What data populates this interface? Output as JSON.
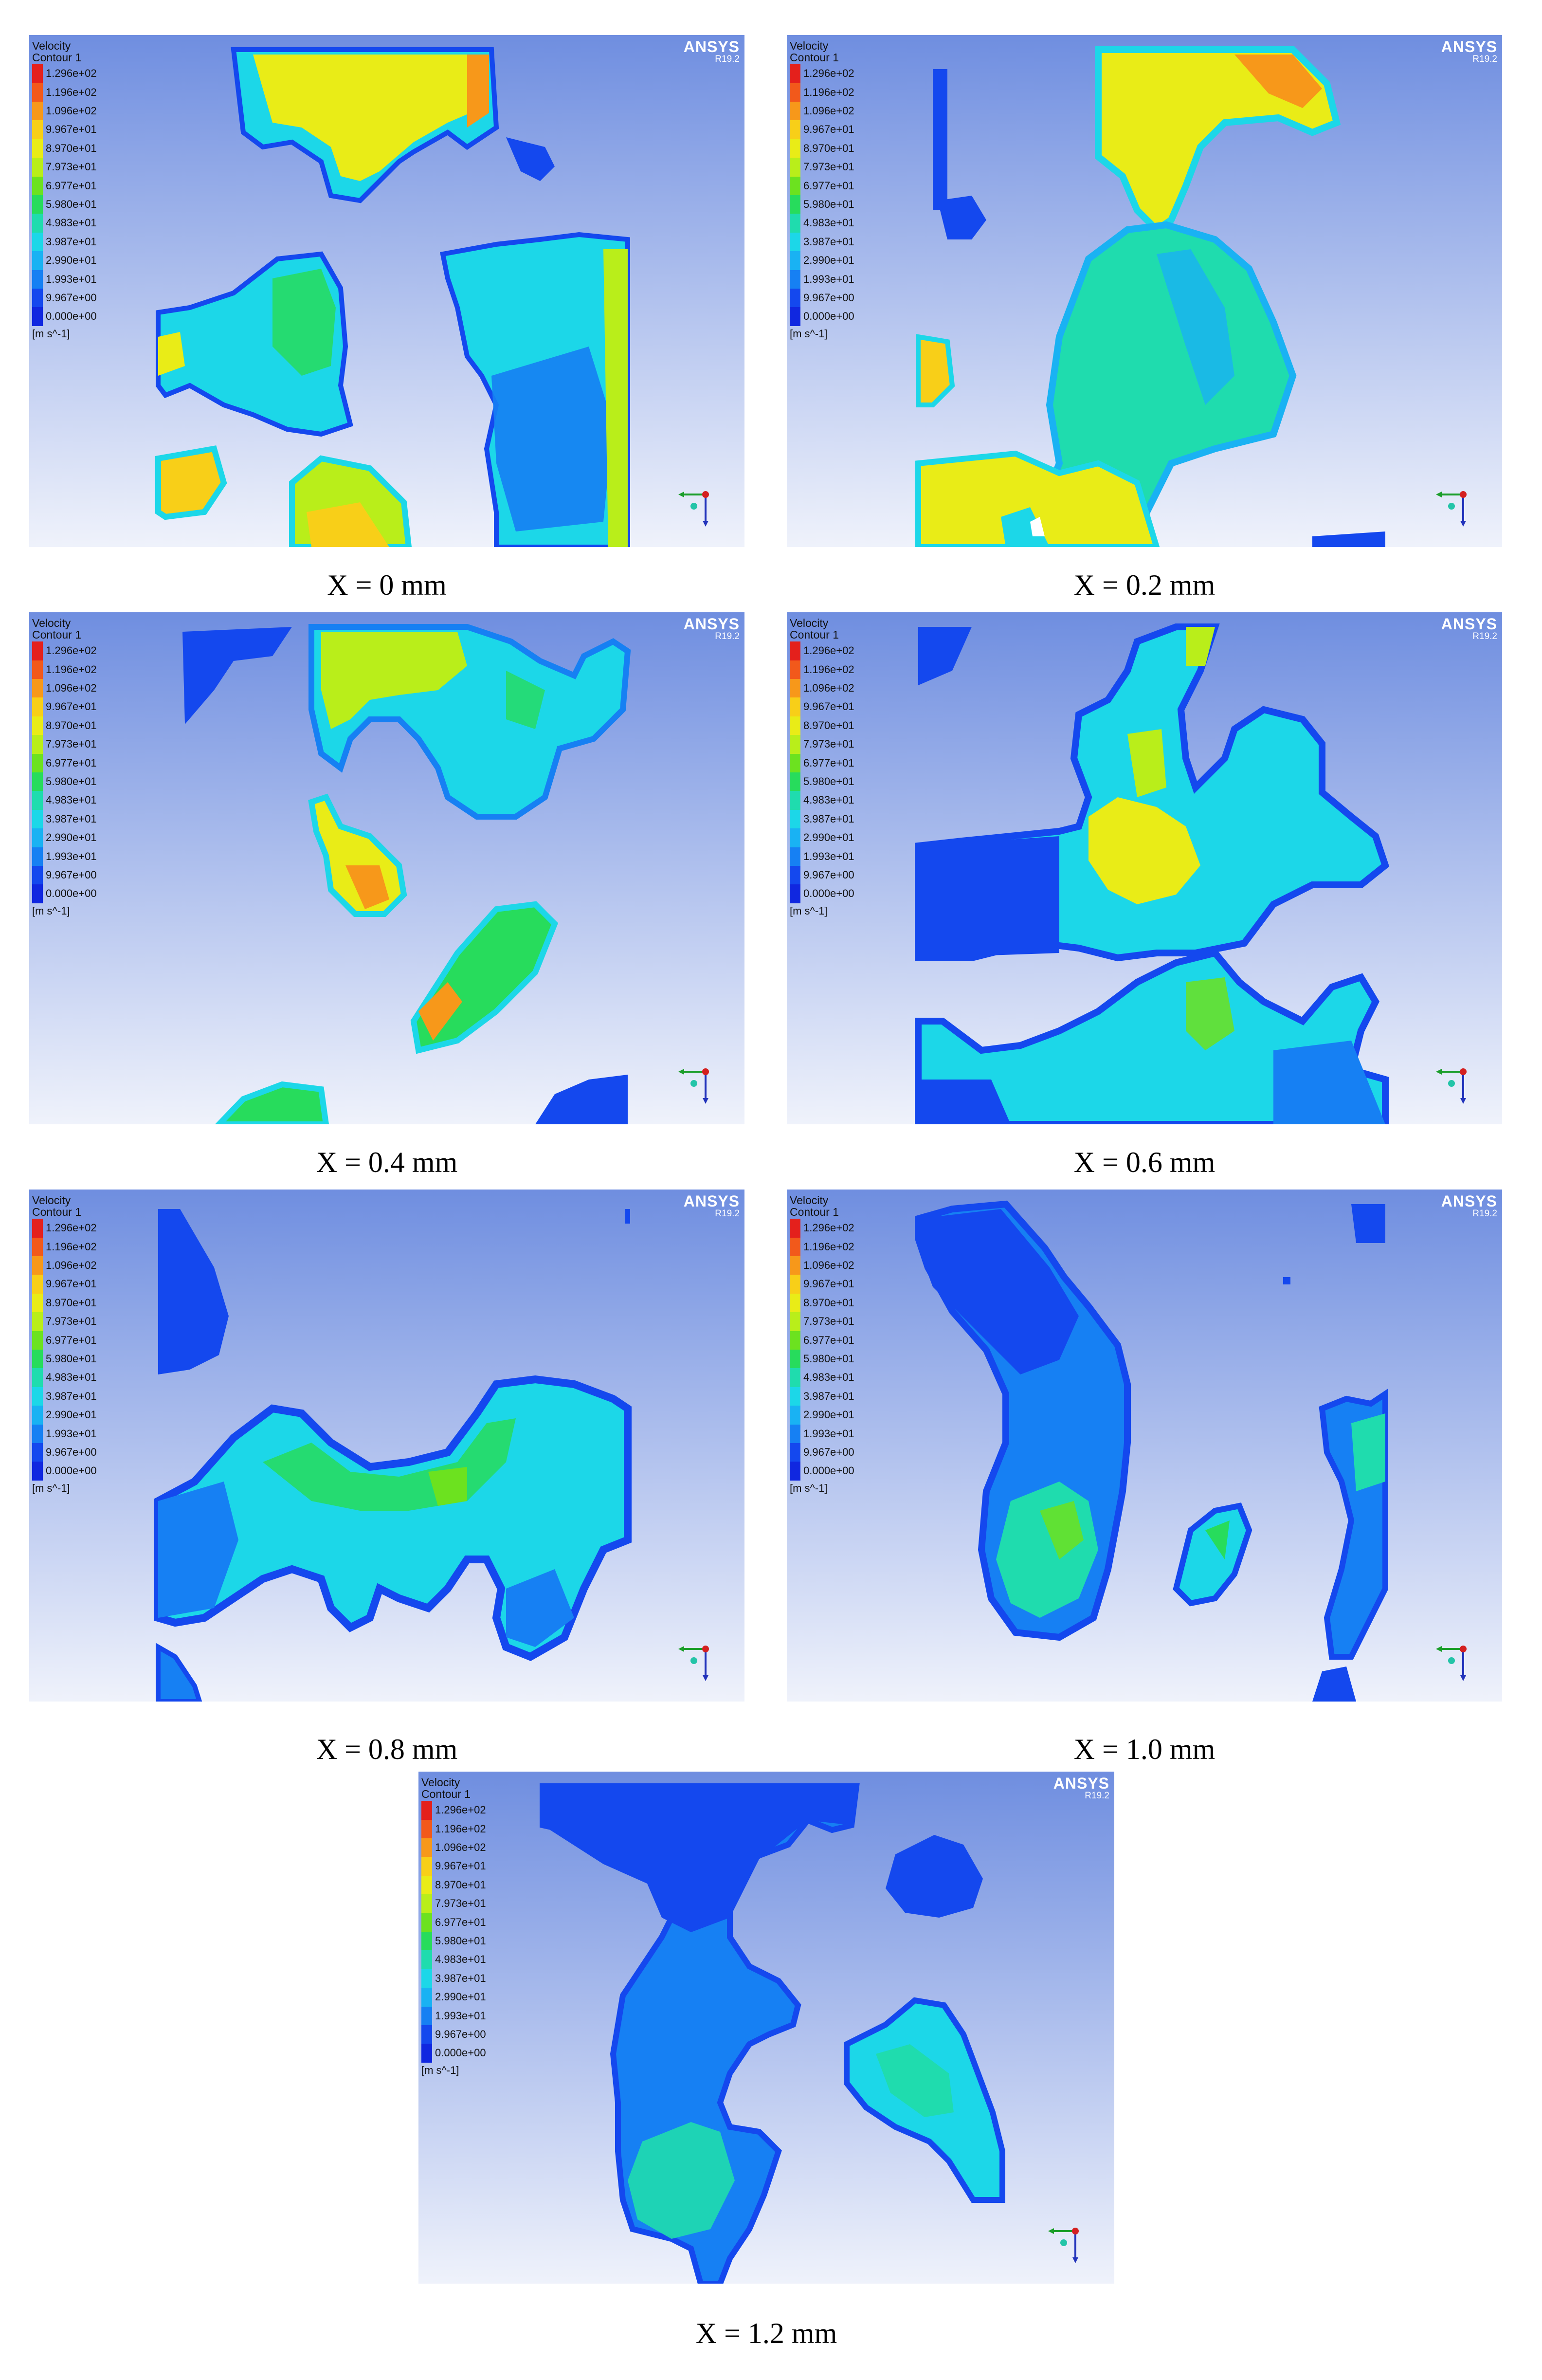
{
  "legend": {
    "title": "Velocity",
    "subtitle": "Contour 1",
    "unit": "[m s^-1]",
    "values": [
      "1.296e+02",
      "1.196e+02",
      "1.096e+02",
      "9.967e+01",
      "8.970e+01",
      "7.973e+01",
      "6.977e+01",
      "5.980e+01",
      "4.983e+01",
      "3.987e+01",
      "2.990e+01",
      "1.993e+01",
      "9.967e+00",
      "0.000e+00"
    ],
    "colors": [
      "#e4201c",
      "#f2591b",
      "#f7981a",
      "#f8cf18",
      "#e9ec17",
      "#b9ee1a",
      "#6ce21f",
      "#27dc5c",
      "#1fdcae",
      "#1cd7e8",
      "#19b2f3",
      "#1680f3",
      "#1448ee",
      "#1027e0"
    ]
  },
  "brand": {
    "name": "ANSYS",
    "version": "R19.2"
  },
  "panels": [
    {
      "caption": "X = 0 mm"
    },
    {
      "caption": "X = 0.2 mm"
    },
    {
      "caption": "X = 0.4 mm"
    },
    {
      "caption": "X = 0.6 mm"
    },
    {
      "caption": "X = 0.8 mm"
    },
    {
      "caption": "X = 1.0 mm"
    },
    {
      "caption": "X = 1.2 mm"
    }
  ]
}
